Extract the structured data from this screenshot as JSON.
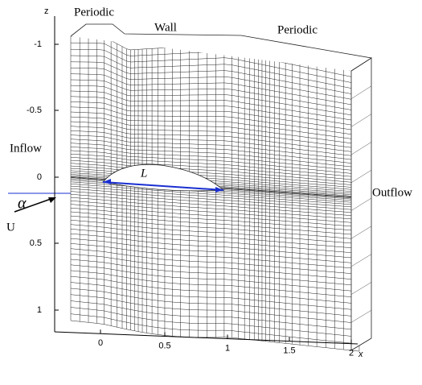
{
  "labels": {
    "top_left": "Periodic",
    "top_middle": "Wall",
    "top_right": "Periodic",
    "inflow": "Inflow",
    "outflow": "Outflow",
    "chord": "L",
    "angle": "α",
    "velocity": "U"
  },
  "z_axis": {
    "title": "z",
    "ticks": [
      "-1",
      "-0.5",
      "0",
      "0.5",
      "1"
    ]
  },
  "x_axis": {
    "title": "x",
    "ticks": [
      "0",
      "0.5",
      "1",
      "1.5",
      "2"
    ]
  }
}
